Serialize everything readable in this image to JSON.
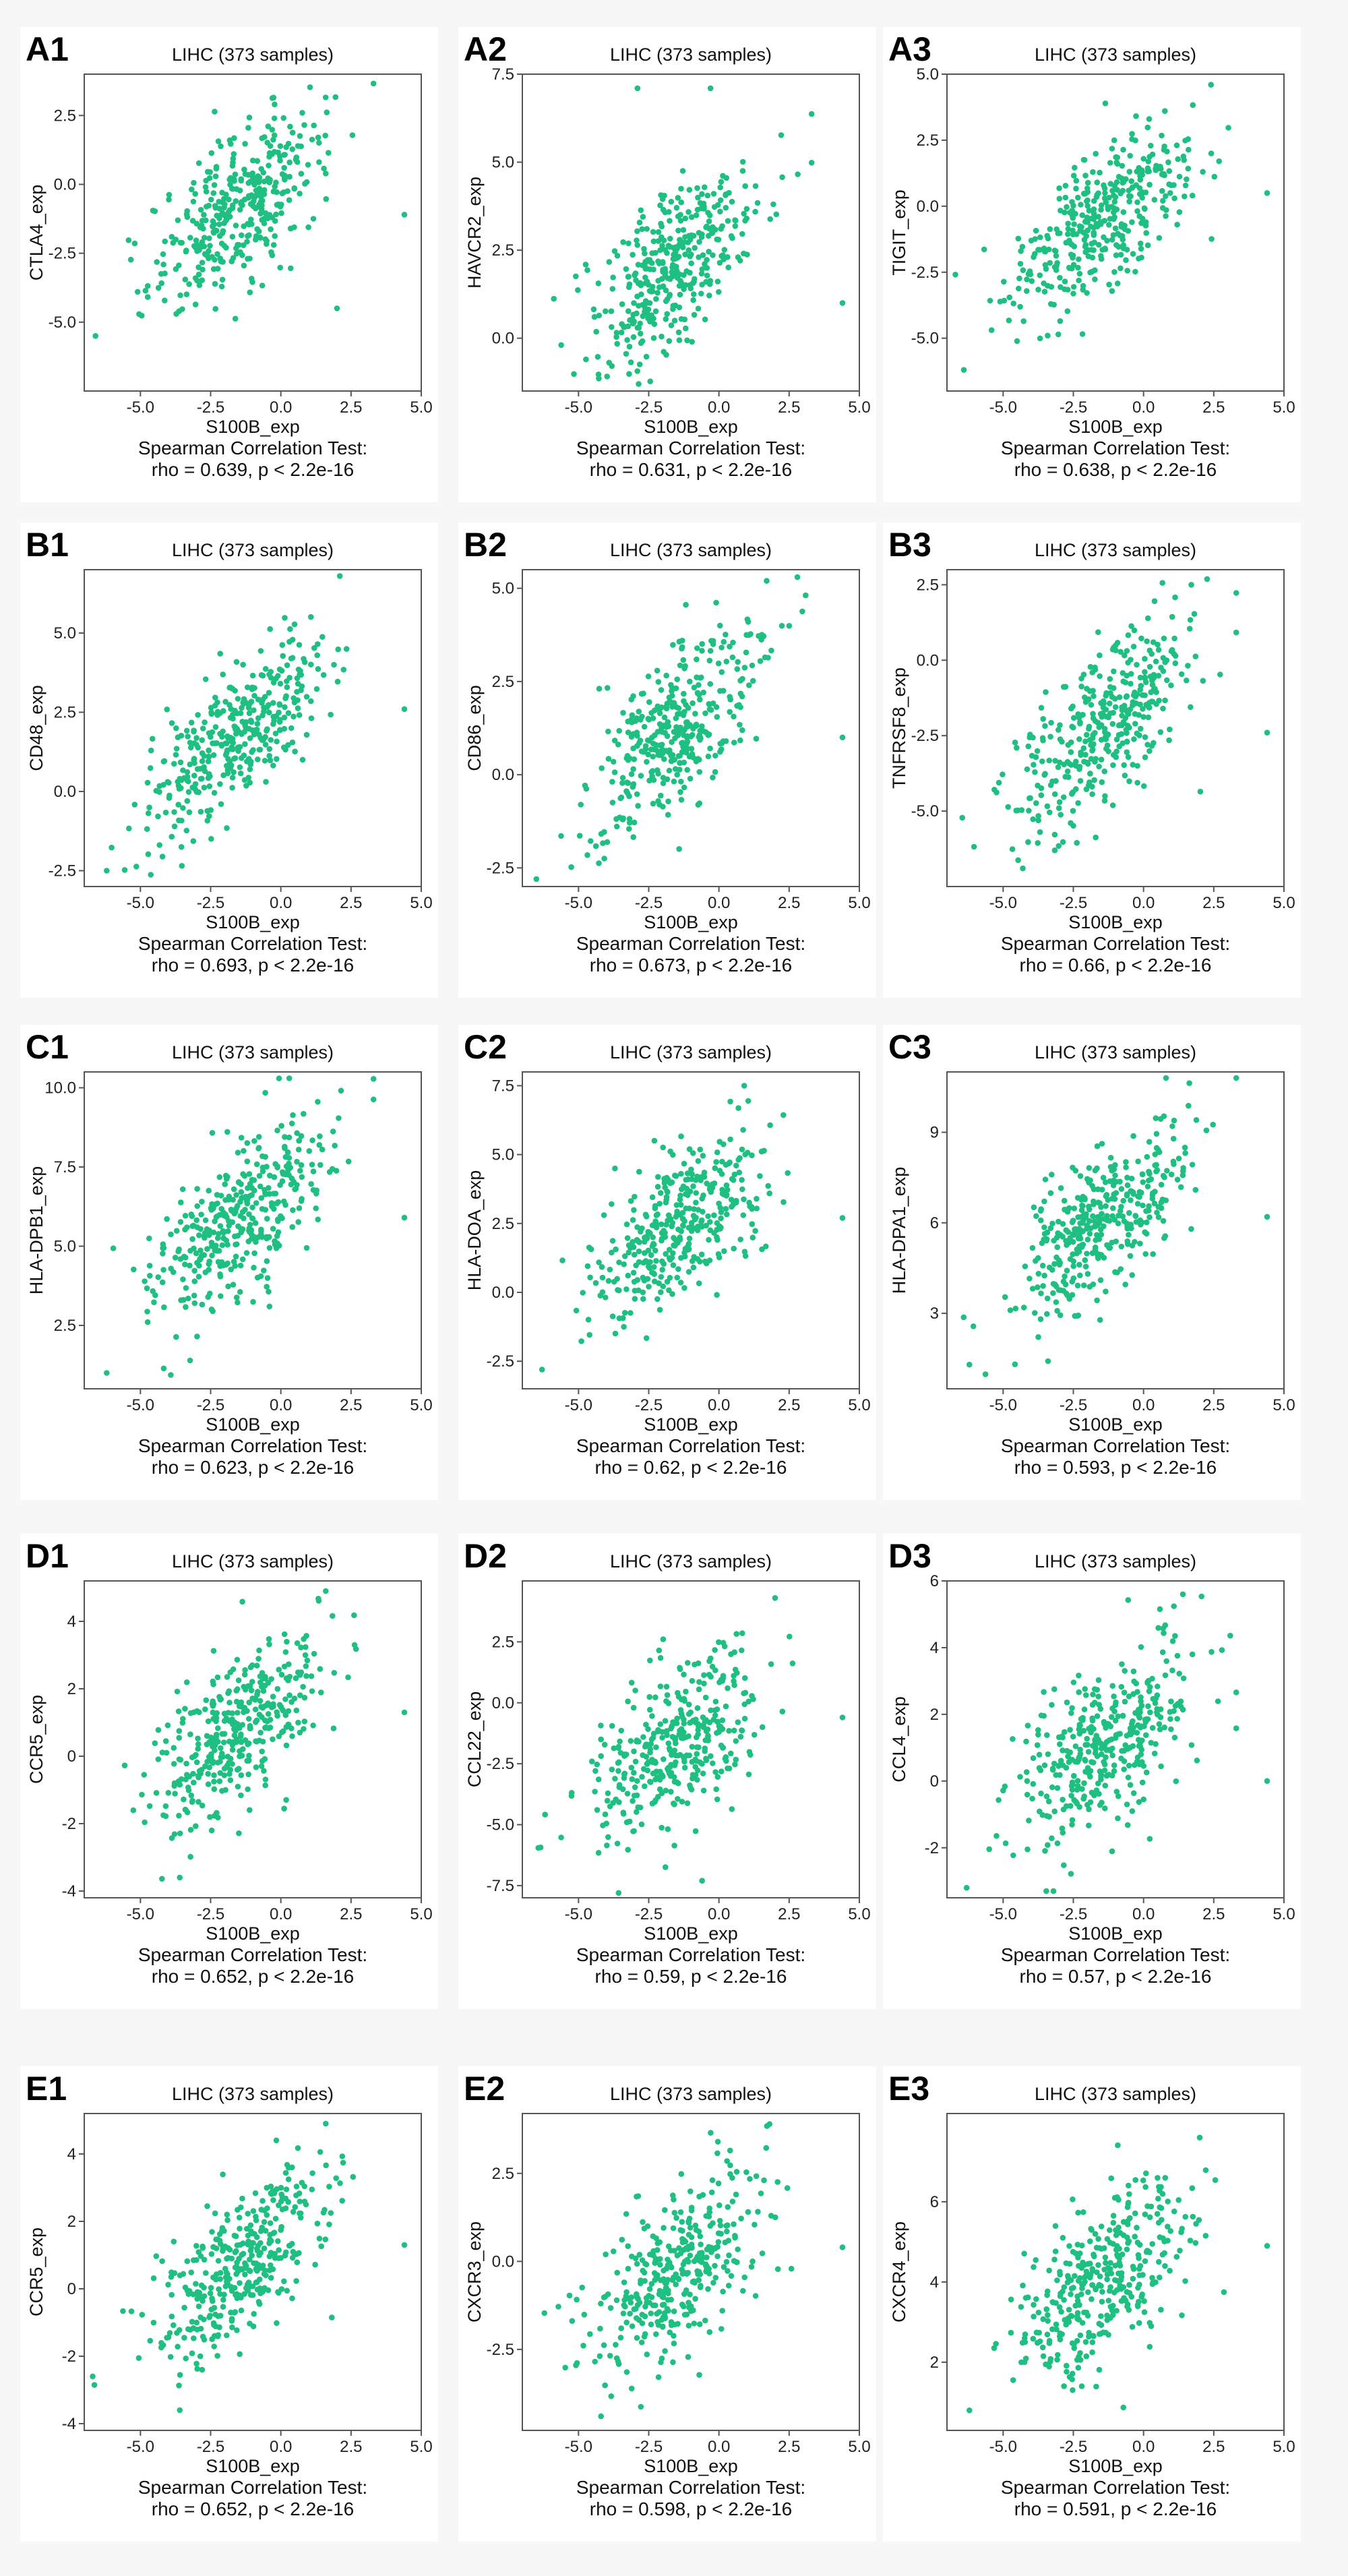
{
  "chart_data": [
    {
      "panel": "A1",
      "type": "scatter",
      "title": "LIHC (373 samples)",
      "xlabel": "S100B_exp",
      "ylabel": "CTLA4_exp",
      "xlim": [
        -7,
        5
      ],
      "ylim": [
        -7.5,
        4
      ],
      "xticks": [
        "-5.0",
        "-2.5",
        "0.0",
        "2.5",
        "5.0"
      ],
      "yticks": [
        "-5.0",
        "-2.5",
        "0.0",
        "2.5"
      ],
      "test": "Spearman Correlation Test:",
      "result": "rho = 0.639, p < 2.2e-16",
      "n": 373,
      "rho": 0.639,
      "y_center": -0.8,
      "y_sd": 1.75,
      "outliers": [
        [
          4.4,
          -1.1
        ],
        [
          2.0,
          -4.5
        ],
        [
          -6.6,
          -5.5
        ]
      ]
    },
    {
      "panel": "A2",
      "type": "scatter",
      "title": "LIHC (373 samples)",
      "xlabel": "S100B_exp",
      "ylabel": "HAVCR2_exp",
      "xlim": [
        -7,
        5
      ],
      "ylim": [
        -1.5,
        7.5
      ],
      "xticks": [
        "-5.0",
        "-2.5",
        "0.0",
        "2.5",
        "5.0"
      ],
      "yticks": [
        "0.0",
        "2.5",
        "5.0",
        "7.5"
      ],
      "test": "Spearman Correlation Test:",
      "result": "rho = 0.631, p < 2.2e-16",
      "n": 373,
      "rho": 0.631,
      "y_center": 2.1,
      "y_sd": 1.4,
      "outliers": [
        [
          4.4,
          1.0
        ],
        [
          -2.9,
          7.1
        ],
        [
          -0.3,
          7.1
        ]
      ]
    },
    {
      "panel": "A3",
      "type": "scatter",
      "title": "LIHC (373 samples)",
      "xlabel": "S100B_exp",
      "ylabel": "TIGIT_exp",
      "xlim": [
        -7,
        5
      ],
      "ylim": [
        -7,
        5
      ],
      "xticks": [
        "-5.0",
        "-2.5",
        "0.0",
        "2.5",
        "5.0"
      ],
      "yticks": [
        "-5.0",
        "-2.5",
        "0.0",
        "2.5",
        "5.0"
      ],
      "test": "Spearman Correlation Test:",
      "result": "rho = 0.638, p < 2.2e-16",
      "n": 373,
      "rho": 0.638,
      "y_center": -0.6,
      "y_sd": 1.75,
      "outliers": [
        [
          4.4,
          0.5
        ],
        [
          2.4,
          4.6
        ],
        [
          -6.4,
          -6.2
        ]
      ]
    },
    {
      "panel": "B1",
      "type": "scatter",
      "title": "LIHC (373 samples)",
      "xlabel": "S100B_exp",
      "ylabel": "CD48_exp",
      "xlim": [
        -7,
        5
      ],
      "ylim": [
        -3,
        7
      ],
      "xticks": [
        "-5.0",
        "-2.5",
        "0.0",
        "2.5",
        "5.0"
      ],
      "yticks": [
        "-2.5",
        "0.0",
        "2.5",
        "5.0"
      ],
      "test": "Spearman Correlation Test:",
      "result": "rho = 0.693, p < 2.2e-16",
      "n": 373,
      "rho": 0.693,
      "y_center": 1.9,
      "y_sd": 1.5,
      "outliers": [
        [
          4.4,
          2.6
        ],
        [
          2.1,
          6.8
        ],
        [
          -6.2,
          -2.5
        ]
      ]
    },
    {
      "panel": "B2",
      "type": "scatter",
      "title": "LIHC (373 samples)",
      "xlabel": "S100B_exp",
      "ylabel": "CD86_exp",
      "xlim": [
        -7,
        5
      ],
      "ylim": [
        -3,
        5.5
      ],
      "xticks": [
        "-5.0",
        "-2.5",
        "0.0",
        "2.5",
        "5.0"
      ],
      "yticks": [
        "-2.5",
        "0.0",
        "2.5",
        "5.0"
      ],
      "test": "Spearman Correlation Test:",
      "result": "rho = 0.673, p < 2.2e-16",
      "n": 373,
      "rho": 0.673,
      "y_center": 1.3,
      "y_sd": 1.45,
      "outliers": [
        [
          4.4,
          1.0
        ],
        [
          -6.5,
          -2.8
        ],
        [
          1.7,
          5.2
        ]
      ]
    },
    {
      "panel": "B3",
      "type": "scatter",
      "title": "LIHC (373 samples)",
      "xlabel": "S100B_exp",
      "ylabel": "TNFRSF8_exp",
      "xlim": [
        -7,
        5
      ],
      "ylim": [
        -7.5,
        3
      ],
      "xticks": [
        "-5.0",
        "-2.5",
        "0.0",
        "2.5",
        "5.0"
      ],
      "yticks": [
        "-5.0",
        "-2.5",
        "0.0",
        "2.5"
      ],
      "test": "Spearman Correlation Test:",
      "result": "rho = 0.66, p < 2.2e-16",
      "n": 373,
      "rho": 0.66,
      "y_center": -2.3,
      "y_sd": 1.7,
      "outliers": [
        [
          4.4,
          -2.4
        ],
        [
          1.7,
          2.5
        ],
        [
          -4.3,
          -6.9
        ]
      ]
    },
    {
      "panel": "C1",
      "type": "scatter",
      "title": "LIHC (373 samples)",
      "xlabel": "S100B_exp",
      "ylabel": "HLA-DPB1_exp",
      "xlim": [
        -7,
        5
      ],
      "ylim": [
        0.5,
        10.5
      ],
      "xticks": [
        "-5.0",
        "-2.5",
        "0.0",
        "2.5",
        "5.0"
      ],
      "yticks": [
        "2.5",
        "5.0",
        "7.5",
        "10.0"
      ],
      "test": "Spearman Correlation Test:",
      "result": "rho = 0.623, p < 2.2e-16",
      "n": 373,
      "rho": 0.623,
      "y_center": 5.8,
      "y_sd": 1.5,
      "outliers": [
        [
          4.4,
          5.9
        ],
        [
          0.3,
          10.3
        ],
        [
          -6.2,
          1.0
        ]
      ]
    },
    {
      "panel": "C2",
      "type": "scatter",
      "title": "LIHC (373 samples)",
      "xlabel": "S100B_exp",
      "ylabel": "HLA-DOA_exp",
      "xlim": [
        -7,
        5
      ],
      "ylim": [
        -3.5,
        8
      ],
      "xticks": [
        "-5.0",
        "-2.5",
        "0.0",
        "2.5",
        "5.0"
      ],
      "yticks": [
        "-2.5",
        "0.0",
        "2.5",
        "5.0",
        "7.5"
      ],
      "test": "Spearman Correlation Test:",
      "result": "rho = 0.62, p < 2.2e-16",
      "n": 373,
      "rho": 0.62,
      "y_center": 2.5,
      "y_sd": 1.75,
      "outliers": [
        [
          4.4,
          2.7
        ],
        [
          -6.3,
          -2.8
        ],
        [
          0.9,
          7.5
        ]
      ]
    },
    {
      "panel": "C3",
      "type": "scatter",
      "title": "LIHC (373 samples)",
      "xlabel": "S100B_exp",
      "ylabel": "HLA-DPA1_exp",
      "xlim": [
        -7,
        5
      ],
      "ylim": [
        0.5,
        11
      ],
      "xticks": [
        "-5.0",
        "-2.5",
        "0.0",
        "2.5",
        "5.0"
      ],
      "yticks": [
        "3",
        "6",
        "9"
      ],
      "test": "Spearman Correlation Test:",
      "result": "rho = 0.593, p < 2.2e-16",
      "n": 373,
      "rho": 0.593,
      "y_center": 6.0,
      "y_sd": 1.55,
      "outliers": [
        [
          4.4,
          6.2
        ],
        [
          0.8,
          10.8
        ],
        [
          -6.2,
          1.3
        ]
      ]
    },
    {
      "panel": "D1",
      "type": "scatter",
      "title": "LIHC (373 samples)",
      "xlabel": "S100B_exp",
      "ylabel": "CCR5_exp",
      "xlim": [
        -7,
        5
      ],
      "ylim": [
        -4.2,
        5.2
      ],
      "xticks": [
        "-5.0",
        "-2.5",
        "0.0",
        "2.5",
        "5.0"
      ],
      "yticks": [
        "-4",
        "-2",
        "0",
        "2",
        "4"
      ],
      "test": "Spearman Correlation Test:",
      "result": "rho = 0.652, p < 2.2e-16",
      "n": 373,
      "rho": 0.652,
      "y_center": 0.7,
      "y_sd": 1.4,
      "outliers": [
        [
          4.4,
          1.3
        ],
        [
          1.6,
          4.9
        ],
        [
          -3.6,
          -3.6
        ]
      ]
    },
    {
      "panel": "D2",
      "type": "scatter",
      "title": "LIHC (373 samples)",
      "xlabel": "S100B_exp",
      "ylabel": "CCL22_exp",
      "xlim": [
        -7,
        5
      ],
      "ylim": [
        -8,
        5
      ],
      "xticks": [
        "-5.0",
        "-2.5",
        "0.0",
        "2.5",
        "5.0"
      ],
      "yticks": [
        "-7.5",
        "-5.0",
        "-2.5",
        "0.0",
        "2.5"
      ],
      "test": "Spearman Correlation Test:",
      "result": "rho = 0.59, p < 2.2e-16",
      "n": 373,
      "rho": 0.59,
      "y_center": -1.7,
      "y_sd": 1.85,
      "outliers": [
        [
          4.4,
          -0.6
        ],
        [
          2.0,
          4.3
        ],
        [
          -0.6,
          -7.3
        ]
      ]
    },
    {
      "panel": "D3",
      "type": "scatter",
      "title": "LIHC (373 samples)",
      "xlabel": "S100B_exp",
      "ylabel": "CCL4_exp",
      "xlim": [
        -7,
        5
      ],
      "ylim": [
        -3.5,
        6
      ],
      "xticks": [
        "-5.0",
        "-2.5",
        "0.0",
        "2.5",
        "5.0"
      ],
      "yticks": [
        "-2",
        "0",
        "2",
        "4",
        "6"
      ],
      "test": "Spearman Correlation Test:",
      "result": "rho = 0.57, p < 2.2e-16",
      "n": 373,
      "rho": 0.57,
      "y_center": 1.0,
      "y_sd": 1.45,
      "outliers": [
        [
          4.4,
          0.0
        ],
        [
          1.4,
          5.6
        ],
        [
          -6.3,
          -3.2
        ]
      ]
    },
    {
      "panel": "E1",
      "type": "scatter",
      "title": "LIHC (373 samples)",
      "xlabel": "S100B_exp",
      "ylabel": "CCR5_exp",
      "xlim": [
        -7,
        5
      ],
      "ylim": [
        -4.2,
        5.2
      ],
      "xticks": [
        "-5.0",
        "-2.5",
        "0.0",
        "2.5",
        "5.0"
      ],
      "yticks": [
        "-4",
        "-2",
        "0",
        "2",
        "4"
      ],
      "test": "Spearman Correlation Test:",
      "result": "rho = 0.652, p < 2.2e-16",
      "n": 373,
      "rho": 0.652,
      "y_center": 0.7,
      "y_sd": 1.4,
      "outliers": [
        [
          4.4,
          1.3
        ],
        [
          1.6,
          4.9
        ],
        [
          -3.6,
          -3.6
        ]
      ]
    },
    {
      "panel": "E2",
      "type": "scatter",
      "title": "LIHC (373 samples)",
      "xlabel": "S100B_exp",
      "ylabel": "CXCR3_exp",
      "xlim": [
        -7,
        5
      ],
      "ylim": [
        -4.8,
        4.2
      ],
      "xticks": [
        "-5.0",
        "-2.5",
        "0.0",
        "2.5",
        "5.0"
      ],
      "yticks": [
        "-2.5",
        "0.0",
        "2.5"
      ],
      "test": "Spearman Correlation Test:",
      "result": "rho = 0.598, p < 2.2e-16",
      "n": 373,
      "rho": 0.598,
      "y_center": -0.2,
      "y_sd": 1.45,
      "outliers": [
        [
          4.4,
          0.4
        ],
        [
          1.8,
          3.9
        ],
        [
          -4.2,
          -4.4
        ]
      ]
    },
    {
      "panel": "E3",
      "type": "scatter",
      "title": "LIHC (373 samples)",
      "xlabel": "S100B_exp",
      "ylabel": "CXCR4_exp",
      "xlim": [
        -7,
        5
      ],
      "ylim": [
        0.3,
        8.2
      ],
      "xticks": [
        "-5.0",
        "-2.5",
        "0.0",
        "2.5",
        "5.0"
      ],
      "yticks": [
        "2",
        "4",
        "6"
      ],
      "test": "Spearman Correlation Test:",
      "result": "rho = 0.591, p < 2.2e-16",
      "n": 373,
      "rho": 0.591,
      "y_center": 4.1,
      "y_sd": 1.2,
      "outliers": [
        [
          4.4,
          4.9
        ],
        [
          2.0,
          7.6
        ],
        [
          -6.2,
          0.8
        ]
      ]
    }
  ],
  "colors": {
    "points": "#1fbf82",
    "frame": "#555555"
  }
}
